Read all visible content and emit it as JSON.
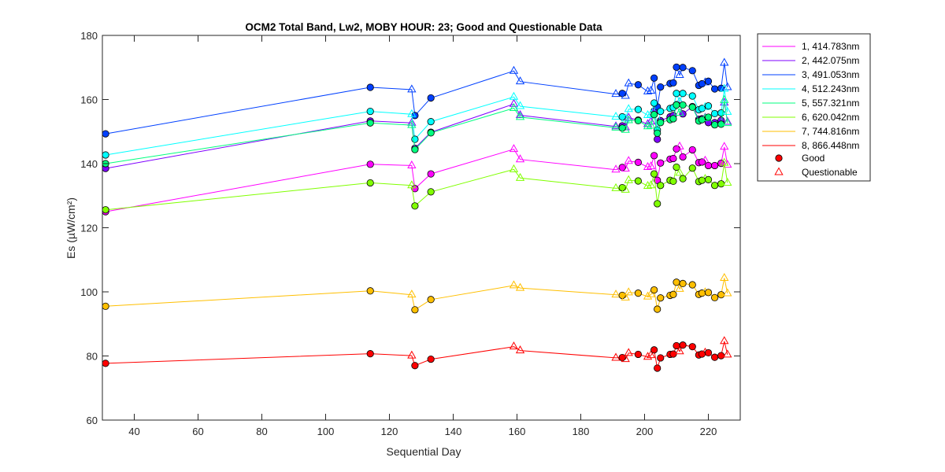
{
  "chart_data": {
    "type": "line",
    "title": "OCM2 Total Band,  Lw2, MOBY HOUR: 23;  Good and Questionable Data",
    "xlabel": "Sequential Day",
    "ylabel": "Es (µW/cm²)",
    "xlim": [
      30,
      230
    ],
    "ylim": [
      60,
      180
    ],
    "xticks": [
      40,
      60,
      80,
      100,
      120,
      140,
      160,
      180,
      200,
      220
    ],
    "yticks": [
      60,
      80,
      100,
      120,
      140,
      160,
      180
    ],
    "grid": false,
    "legend_position": "outside-right",
    "marker_legend": [
      {
        "label": "Good",
        "marker": "circle"
      },
      {
        "label": "Questionable",
        "marker": "triangle"
      }
    ],
    "x": [
      31,
      114,
      127,
      128,
      133,
      159,
      161,
      191,
      193,
      194,
      195,
      198,
      201,
      202,
      203,
      204,
      205,
      208,
      209,
      210,
      211,
      212,
      215,
      217,
      218,
      219,
      220,
      222,
      224,
      225,
      226
    ],
    "q": [
      "G",
      "G",
      "Q",
      "G",
      "G",
      "Q",
      "Q",
      "Q",
      "G",
      "Q",
      "Q",
      "G",
      "Q",
      "Q",
      "G",
      "G",
      "G",
      "G",
      "G",
      "G",
      "Q",
      "G",
      "G",
      "G",
      "G",
      "Q",
      "G",
      "G",
      "G",
      "Q",
      "Q"
    ],
    "series": [
      {
        "name": "1, 414.783nm",
        "color": "#ff00ff",
        "values": [
          125.0,
          139.8,
          139.4,
          132.2,
          136.8,
          144.5,
          141.3,
          138.1,
          138.8,
          138.4,
          140.8,
          140.4,
          138.9,
          139.1,
          142.5,
          134.8,
          140.2,
          141.4,
          141.6,
          144.6,
          145.3,
          142.1,
          144.3,
          140.3,
          140.5,
          140.9,
          139.4,
          139.4,
          140.1,
          145.2,
          139.6
        ]
      },
      {
        "name": "2, 442.075nm",
        "color": "#7f00ff",
        "values": [
          138.5,
          153.3,
          152.7,
          144.8,
          149.8,
          158.6,
          155.1,
          151.6,
          151.8,
          151.3,
          154.3,
          153.6,
          152.3,
          153.1,
          156.4,
          147.6,
          153.4,
          154.6,
          155.0,
          158.4,
          159.2,
          155.5,
          157.8,
          153.8,
          154.0,
          154.3,
          152.8,
          152.8,
          153.5,
          159.0,
          153.0
        ]
      },
      {
        "name": "3, 491.053nm",
        "color": "#0040ff",
        "values": [
          149.3,
          163.8,
          163.1,
          155.0,
          160.5,
          168.9,
          165.6,
          161.7,
          161.9,
          161.1,
          165.0,
          164.6,
          162.5,
          162.7,
          166.7,
          157.7,
          163.9,
          165.0,
          165.2,
          170.1,
          167.6,
          170.0,
          169.0,
          164.4,
          164.9,
          165.3,
          165.7,
          163.3,
          163.5,
          171.4,
          163.8
        ]
      },
      {
        "name": "4, 512.243nm",
        "color": "#00ffff",
        "values": [
          142.7,
          156.3,
          155.4,
          147.6,
          153.1,
          160.8,
          157.9,
          154.6,
          154.6,
          154.0,
          157.0,
          156.9,
          155.1,
          155.3,
          158.9,
          150.5,
          156.3,
          157.2,
          157.5,
          161.9,
          159.3,
          161.9,
          161.1,
          156.8,
          157.2,
          157.6,
          158.0,
          155.6,
          155.8,
          163.3,
          156.1
        ]
      },
      {
        "name": "5, 557.321nm",
        "color": "#00ff7f",
        "values": [
          140.0,
          152.7,
          152.0,
          144.4,
          149.6,
          157.3,
          154.5,
          151.2,
          151.1,
          150.5,
          153.5,
          153.4,
          151.6,
          151.8,
          155.3,
          149.5,
          152.8,
          153.7,
          154.0,
          158.3,
          155.8,
          158.3,
          157.6,
          153.3,
          153.7,
          154.1,
          154.5,
          152.1,
          152.3,
          159.8,
          152.6
        ]
      },
      {
        "name": "6, 620.042nm",
        "color": "#80ff00",
        "values": [
          125.6,
          134.0,
          133.2,
          126.8,
          131.2,
          138.2,
          135.5,
          132.3,
          132.5,
          131.8,
          134.8,
          134.6,
          133.0,
          133.2,
          136.8,
          127.5,
          133.2,
          134.8,
          134.5,
          138.9,
          137.1,
          135.3,
          138.6,
          134.4,
          134.8,
          135.2,
          135.0,
          133.2,
          133.7,
          140.2,
          134.0
        ]
      },
      {
        "name": "7, 744.816nm",
        "color": "#ffbf00",
        "values": [
          95.5,
          100.3,
          99.1,
          94.4,
          97.6,
          102.0,
          101.2,
          99.1,
          98.9,
          98.2,
          99.8,
          99.6,
          98.5,
          99.2,
          100.6,
          94.6,
          98.1,
          98.9,
          99.2,
          103.0,
          100.9,
          102.6,
          102.2,
          99.2,
          99.6,
          99.8,
          99.8,
          98.2,
          99.1,
          104.3,
          99.5
        ]
      },
      {
        "name": "8, 866.448nm",
        "color": "#ff0000",
        "values": [
          77.7,
          80.7,
          80.1,
          77.0,
          79.0,
          82.9,
          81.7,
          79.4,
          79.5,
          79.0,
          80.9,
          80.5,
          79.7,
          80.2,
          81.9,
          76.2,
          79.4,
          80.5,
          80.6,
          83.2,
          81.4,
          83.4,
          82.9,
          80.3,
          80.6,
          81.0,
          81.0,
          79.6,
          80.1,
          84.6,
          80.4
        ]
      }
    ]
  }
}
